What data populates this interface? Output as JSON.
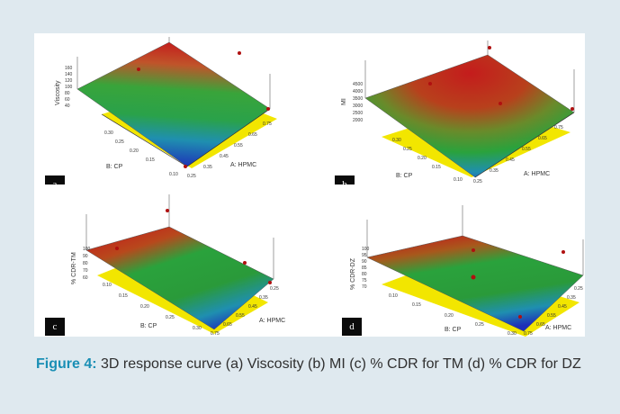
{
  "caption": {
    "label": "Figure 4:",
    "text": " 3D response curve (a) Viscosity (b) MI (c) % CDR for TM (d) % CDR for DZ"
  },
  "panels": [
    {
      "id": "a",
      "badge": "a",
      "zlabel": "Viscosity",
      "zticks": [
        "160",
        "140",
        "120",
        "100",
        "80",
        "60",
        "40"
      ],
      "ylabel": "B: CP",
      "yticks": [
        "0.30",
        "0.25",
        "0.20",
        "0.15",
        "0.10"
      ],
      "xlabel": "A: HPMC",
      "xticks": [
        "0.25",
        "0.35",
        "0.45",
        "0.55",
        "0.65",
        "0.75"
      ]
    },
    {
      "id": "b",
      "badge": "b",
      "zlabel": "MI",
      "zticks": [
        "4500",
        "4000",
        "3500",
        "3000",
        "2500",
        "2000"
      ],
      "ylabel": "B: CP",
      "yticks": [
        "0.30",
        "0.25",
        "0.20",
        "0.15",
        "0.10"
      ],
      "xlabel": "A: HPMC",
      "xticks": [
        "0.25",
        "0.35",
        "0.45",
        "0.55",
        "0.65",
        "0.75"
      ]
    },
    {
      "id": "c",
      "badge": "c",
      "zlabel": "% CDR-TM",
      "zticks": [
        "100",
        "90",
        "80",
        "70",
        "60"
      ],
      "ylabel": "B: CP",
      "yticks": [
        "0.10",
        "0.15",
        "0.20",
        "0.25",
        "0.30"
      ],
      "xlabel": "A: HPMC",
      "xticks": [
        "0.75",
        "0.65",
        "0.55",
        "0.45",
        "0.35",
        "0.25"
      ]
    },
    {
      "id": "d",
      "badge": "d",
      "zlabel": "% CDR-DZ",
      "zticks": [
        "100",
        "95",
        "90",
        "85",
        "80",
        "75",
        "70"
      ],
      "ylabel": "B: CP",
      "yticks": [
        "0.10",
        "0.15",
        "0.20",
        "0.25",
        "0.30"
      ],
      "xlabel": "A: HPMC",
      "xticks": [
        "0.75",
        "0.65",
        "0.55",
        "0.45",
        "0.35",
        "0.25"
      ]
    }
  ],
  "colors": {
    "background": "#dfe9ef",
    "caption_label": "#1a8fb5",
    "floor": "#f2e600"
  }
}
